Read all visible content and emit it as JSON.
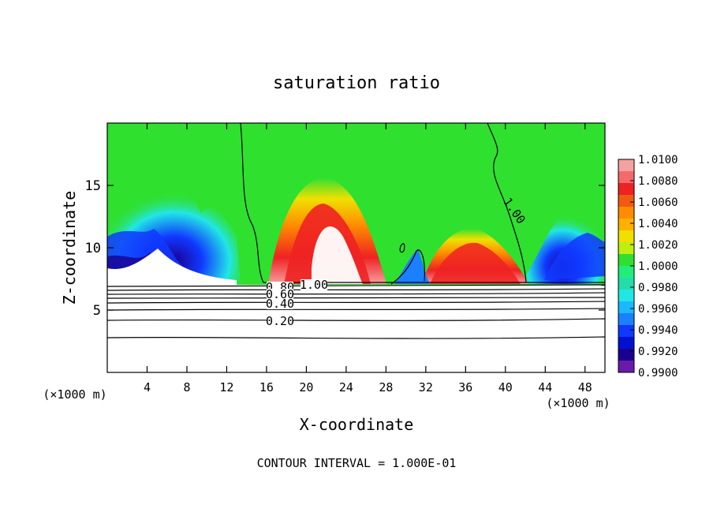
{
  "chart_data": {
    "type": "heatmap",
    "title": "saturation ratio",
    "xlabel": "X-coordinate",
    "ylabel": "Z-coordinate",
    "x_unit": "(×1000 m)",
    "x_ticks": [
      "4",
      "8",
      "12",
      "16",
      "20",
      "24",
      "28",
      "32",
      "36",
      "40",
      "44",
      "48"
    ],
    "y_ticks": [
      "5",
      "10",
      "15"
    ],
    "xlim": [
      0,
      50
    ],
    "ylim": [
      0,
      20
    ],
    "footer": "CONTOUR INTERVAL = 1.000E-01",
    "colorbar": {
      "labels": [
        "1.0100",
        "1.0080",
        "1.0060",
        "1.0040",
        "1.0020",
        "1.0000",
        "0.9980",
        "0.9960",
        "0.9940",
        "0.9920",
        "0.9900"
      ],
      "colors": [
        "#f7a0a0",
        "#f46a6a",
        "#ee2222",
        "#f25a10",
        "#ff8c00",
        "#ffb000",
        "#f0e000",
        "#bfee10",
        "#2fe02f",
        "#20ee7a",
        "#22ddaa",
        "#22e6e6",
        "#1ab8ff",
        "#1a80ff",
        "#1038ff",
        "#0010d0",
        "#1a0090",
        "#6a1aa8"
      ]
    },
    "contour_labels": [
      "1.00",
      "1.00",
      "0.80",
      "0.60",
      "0.40",
      "0.20"
    ]
  },
  "colors": {
    "background": "#ffffff",
    "axis": "#000000"
  }
}
